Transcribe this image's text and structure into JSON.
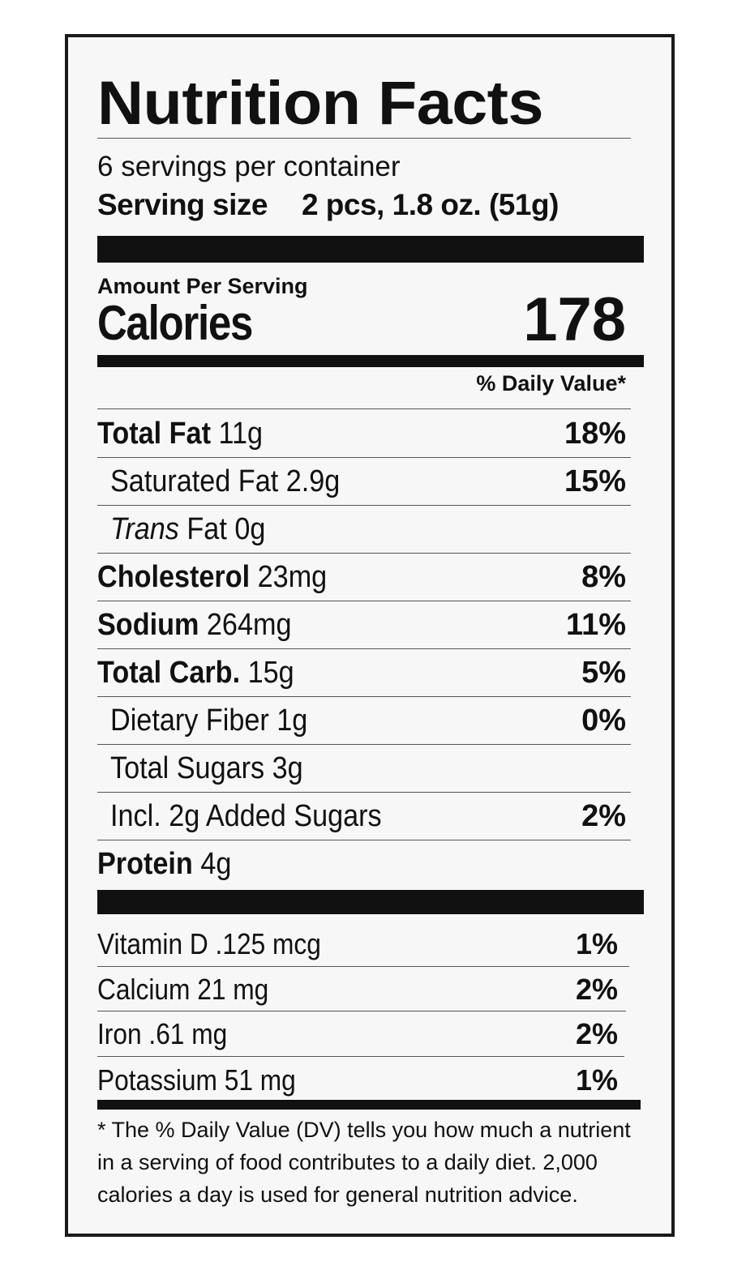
{
  "title": "Nutrition Facts",
  "servings_per_container": "6 servings per container",
  "serving_size_label": "Serving size",
  "serving_size_value": "2 pcs, 1.8 oz. (51g)",
  "amount_per_serving": "Amount Per Serving",
  "calories_label": "Calories",
  "calories_value": "178",
  "daily_value_header": "% Daily Value*",
  "nutrients": [
    {
      "name": "Total Fat",
      "amount": "11g",
      "pct": "18%"
    },
    {
      "name": "Saturated Fat",
      "amount": "2.9g",
      "pct": "15%"
    },
    {
      "name": "Trans",
      "suffix": "Fat",
      "amount": "0g",
      "pct": ""
    },
    {
      "name": "Cholesterol",
      "amount": "23mg",
      "pct": "8%"
    },
    {
      "name": "Sodium",
      "amount": "264mg",
      "pct": "11%"
    },
    {
      "name": "Total Carb.",
      "amount": "15g",
      "pct": "5%"
    },
    {
      "name": "Dietary Fiber",
      "amount": "1g",
      "pct": "0%"
    },
    {
      "name": "Total Sugars",
      "amount": "3g",
      "pct": ""
    },
    {
      "name": "Incl. 2g Added Sugars",
      "amount": "",
      "pct": "2%"
    },
    {
      "name": "Protein",
      "amount": "4g",
      "pct": ""
    }
  ],
  "vitamins": [
    {
      "text": "Vitamin D .125 mcg",
      "pct": "1%"
    },
    {
      "text": "Calcium 21 mg",
      "pct": "2%"
    },
    {
      "text": "Iron .61 mg",
      "pct": "2%"
    },
    {
      "text": "Potassium 51 mg",
      "pct": "1%"
    }
  ],
  "footnote": "* The % Daily Value (DV) tells you how much a nutrient in a serving of food contributes to a daily diet. 2,000 calories a day is used for general nutrition advice."
}
